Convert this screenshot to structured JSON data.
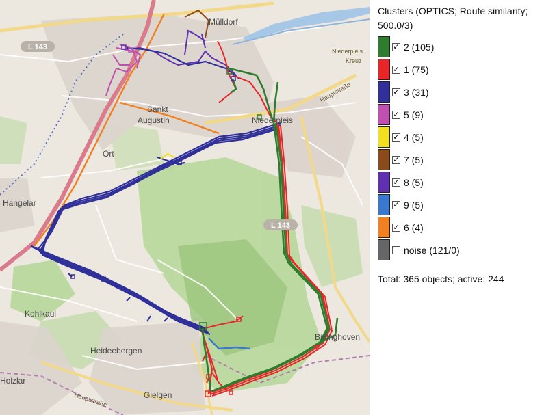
{
  "map": {
    "places": [
      {
        "id": "mulldorf",
        "text": "Mülldorf"
      },
      {
        "id": "sankt",
        "text": "Sankt"
      },
      {
        "id": "augustin",
        "text": "Augustin"
      },
      {
        "id": "ort",
        "text": "Ort"
      },
      {
        "id": "niederpleis",
        "text": "Niederpleis"
      },
      {
        "id": "hangelar",
        "text": "Hangelar"
      },
      {
        "id": "kohlkaul",
        "text": "Kohlkaul"
      },
      {
        "id": "heideebergen",
        "text": "Heideebergen"
      },
      {
        "id": "holzlar",
        "text": "Holzlar"
      },
      {
        "id": "gielgen",
        "text": "Gielgen"
      },
      {
        "id": "birlinghoven",
        "text": "Birlinghoven"
      }
    ],
    "road_labels": {
      "l143_top": "L 143",
      "l143_mid": "L 143",
      "hauptstrasse_right": "Hauptstraße",
      "hauptstrasse_bottom": "Hauptstraße",
      "niederpleis_corner": "Niederpleis",
      "kreuz": "Kreuz"
    },
    "colors": {
      "cluster_2": "#2e7d2e",
      "cluster_1": "#e8262a",
      "cluster_3": "#30309a",
      "cluster_5": "#c050b0",
      "cluster_4": "#f0e020",
      "cluster_7": "#8b4a1c",
      "cluster_8": "#6030b0",
      "cluster_9": "#3a78d0",
      "cluster_6": "#f08020",
      "noise": "#666666"
    }
  },
  "legend": {
    "title": "Clusters (OPTICS; Route similarity; 500.0/3)",
    "items": [
      {
        "label": "2 (105)",
        "color": "#2e7d2e",
        "checked": true
      },
      {
        "label": "1 (75)",
        "color": "#e8262a",
        "checked": true
      },
      {
        "label": "3 (31)",
        "color": "#30309a",
        "checked": true
      },
      {
        "label": "5 (9)",
        "color": "#c050b0",
        "checked": true
      },
      {
        "label": "4 (5)",
        "color": "#f0e020",
        "checked": true
      },
      {
        "label": "7 (5)",
        "color": "#8b4a1c",
        "checked": true
      },
      {
        "label": "8 (5)",
        "color": "#6030b0",
        "checked": true
      },
      {
        "label": "9 (5)",
        "color": "#3a78d0",
        "checked": true
      },
      {
        "label": "6 (4)",
        "color": "#f08020",
        "checked": true
      },
      {
        "label": "noise (121/0)",
        "color": "#666666",
        "checked": false
      }
    ],
    "checkmark": "✓",
    "total": "Total: 365 objects; active: 244"
  }
}
